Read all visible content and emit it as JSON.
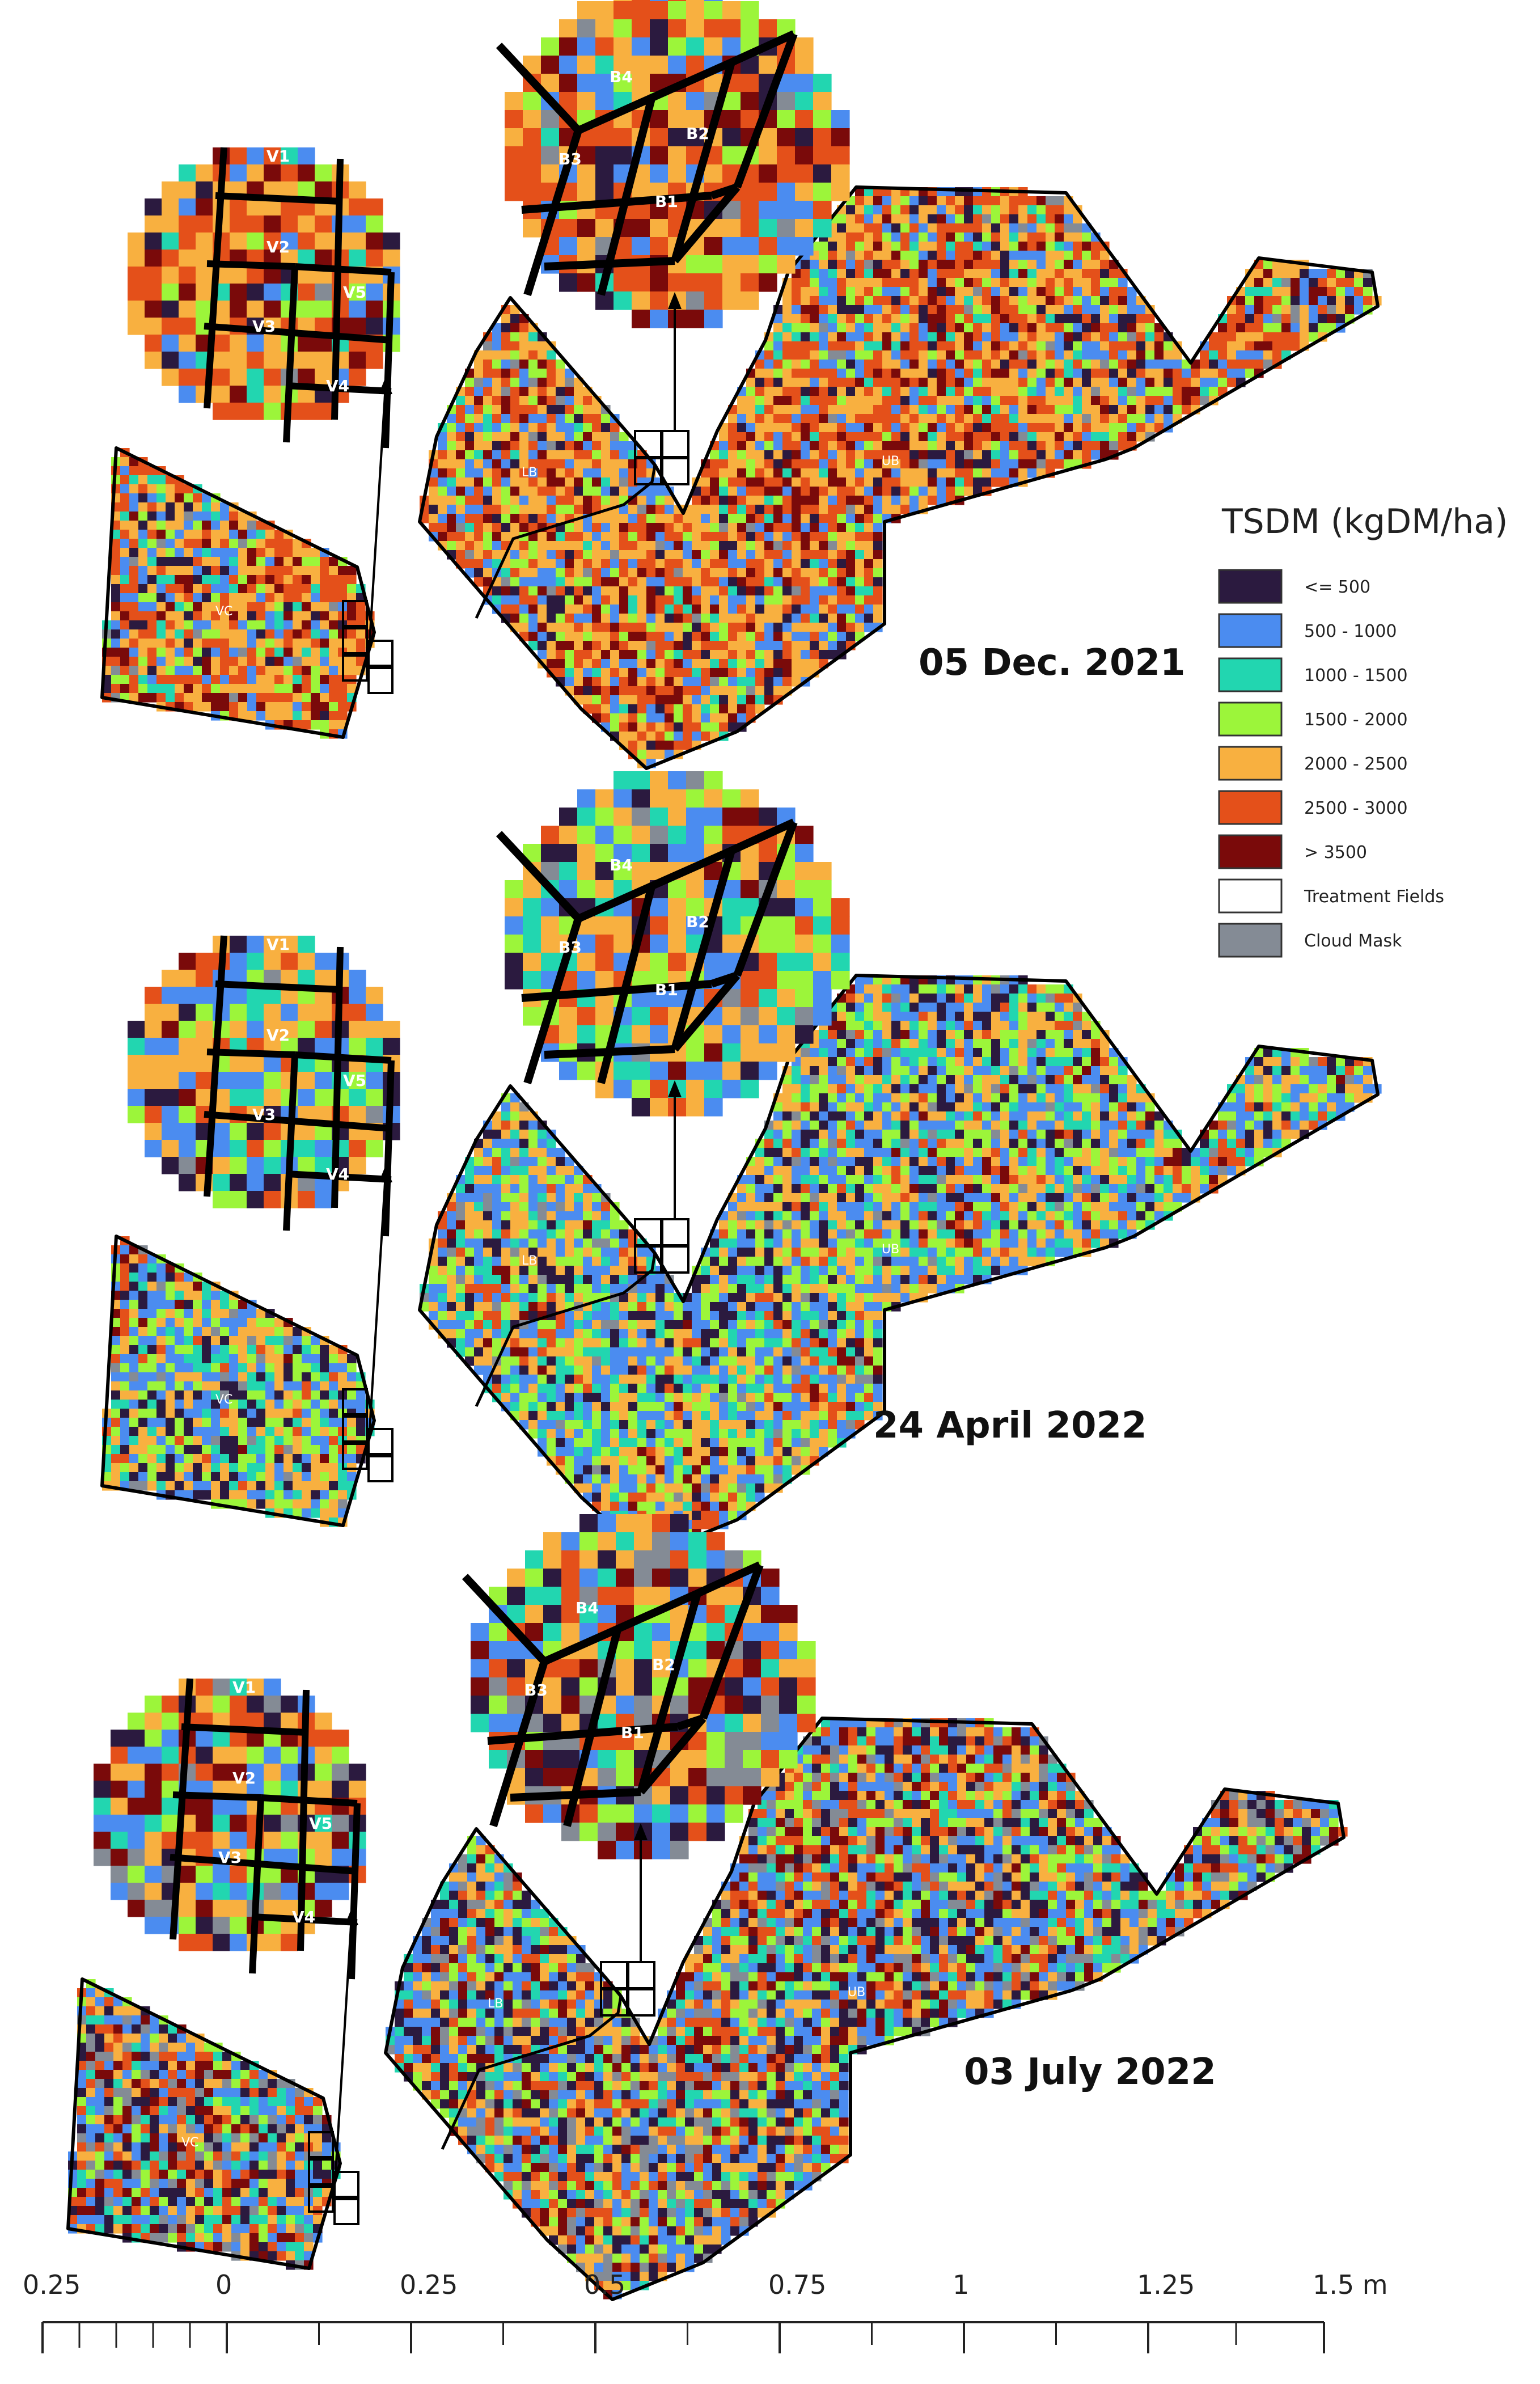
{
  "legend": {
    "title": "TSDM (kgDM/ha)",
    "classes": [
      {
        "label": "<= 500",
        "color": "#2b1a3f"
      },
      {
        "label": "500 - 1000",
        "color": "#4b8cf0"
      },
      {
        "label": "1000 - 1500",
        "color": "#22d6b0"
      },
      {
        "label": "1500 - 2000",
        "color": "#9cf53a"
      },
      {
        "label": "2000 - 2500",
        "color": "#f8b040"
      },
      {
        "label": "2500 - 3000",
        "color": "#e4501a"
      },
      {
        "label": "> 3500",
        "color": "#7a0a0a"
      },
      {
        "label": "Treatment Fields",
        "color": "#ffffff"
      },
      {
        "label": "Cloud Mask",
        "color": "#848b95"
      }
    ]
  },
  "panels": [
    {
      "date": "05  Dec. 2021",
      "mix": [
        0.05,
        0.12,
        0.06,
        0.1,
        0.3,
        0.27,
        0.1
      ],
      "cloud": 0.02
    },
    {
      "date": "24  April 2022",
      "mix": [
        0.1,
        0.24,
        0.14,
        0.2,
        0.26,
        0.05,
        0.01
      ],
      "cloud": 0.03
    },
    {
      "date": "03  July 2022",
      "mix": [
        0.14,
        0.2,
        0.12,
        0.12,
        0.18,
        0.14,
        0.1
      ],
      "cloud": 0.1
    }
  ],
  "field_labels": {
    "vc": "VC",
    "lb": "LB",
    "ub": "UB",
    "v": [
      "V1",
      "V2",
      "V3",
      "V4",
      "V5"
    ],
    "b": [
      "B1",
      "B2",
      "B3",
      "B4"
    ]
  },
  "scale_bar": {
    "ticks": [
      "0.25",
      "0",
      "0.25",
      "0.5",
      "0.75",
      "1",
      "1.25",
      "1.5 m"
    ]
  }
}
